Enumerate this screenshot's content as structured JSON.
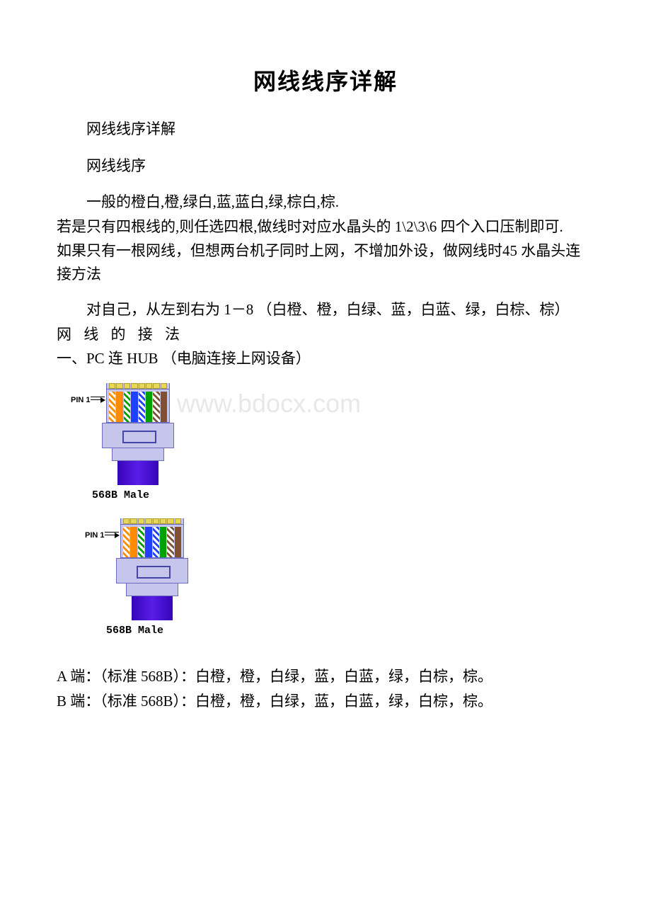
{
  "title": "网线线序详解",
  "intro1": "网线线序详解",
  "intro2": "网线线序",
  "intro3": "一般的橙白,橙,绿白,蓝,蓝白,绿,棕白,棕.",
  "intro4": "若是只有四根线的,则任选四根,做线时对应水晶头的 1\\2\\3\\6 四个入口压制即可.",
  "intro5": "如果只有一根网线，但想两台机子同时上网，不增加外设，做网线时45 水晶头连接方法",
  "para_order": "对自己，从左到右为 1－8 （白橙、橙，白绿、蓝，白蓝、绿，白棕、棕）",
  "method_header": "网 线 的 接 法",
  "method1": "一、PC 连 HUB （电脑连接上网设备）",
  "pin_label": "PIN 1",
  "connector_label": "568B Male",
  "watermark": "www.bdocx.com",
  "end_a": "A 端：（标准 568B）：白橙，橙，白绿，蓝，白蓝，绿，白棕，棕。",
  "end_b": "B 端：（标准 568B）：白橙，橙，白绿，蓝，白蓝，绿，白棕，棕。",
  "wires_568b": [
    {
      "c1": "#ffffff",
      "c2": "#ff8c00",
      "type": "stripe"
    },
    {
      "c1": "#ff8c00",
      "c2": "#ff8c00",
      "type": "solid"
    },
    {
      "c1": "#ffffff",
      "c2": "#00a000",
      "type": "stripe"
    },
    {
      "c1": "#2040ff",
      "c2": "#2040ff",
      "type": "solid"
    },
    {
      "c1": "#ffffff",
      "c2": "#2040ff",
      "type": "stripe"
    },
    {
      "c1": "#00a000",
      "c2": "#00a000",
      "type": "solid"
    },
    {
      "c1": "#ffffff",
      "c2": "#805030",
      "type": "stripe"
    },
    {
      "c1": "#805030",
      "c2": "#805030",
      "type": "solid"
    }
  ],
  "colors": {
    "plug_body": "#c6c5ec",
    "plug_border": "#6a6abf",
    "cable": "#4a0fd6",
    "pin_gold": "#e8d659",
    "watermark": "#e8e8e8",
    "text": "#000000",
    "background": "#ffffff"
  },
  "font_sizes": {
    "title": 32,
    "body": 21,
    "pin_label": 11,
    "conn_label": 15,
    "watermark": 36
  }
}
